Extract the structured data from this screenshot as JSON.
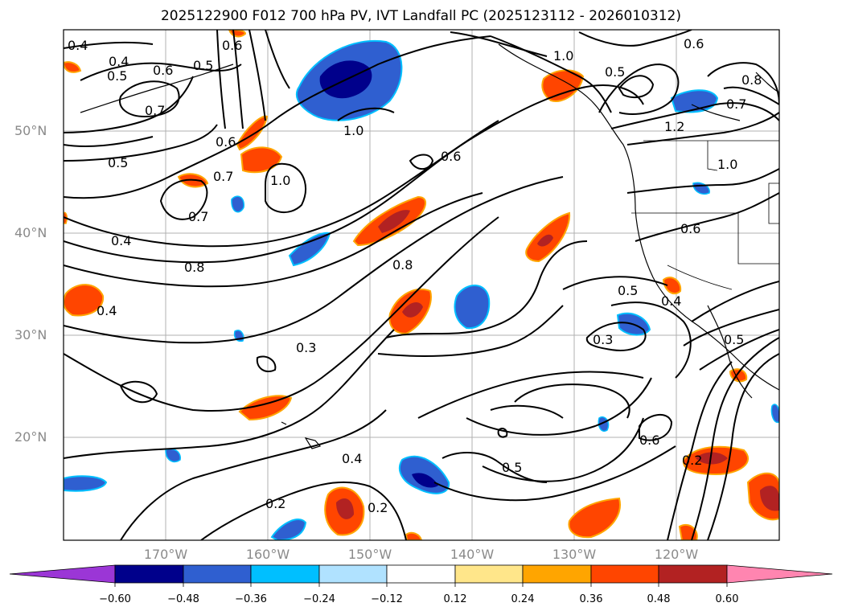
{
  "title": "2025122900 F012 700 hPa PV, IVT Landfall PC (2025123112 - 2026010312)",
  "map": {
    "lat_labels": [
      "50°N",
      "40°N",
      "30°N",
      "20°N"
    ],
    "lon_labels": [
      "170°W",
      "160°W",
      "150°W",
      "140°W",
      "130°W",
      "120°W"
    ],
    "contour_labels": [
      "0.4",
      "0.4",
      "0.5",
      "0.6",
      "0.5",
      "0.6",
      "0.7",
      "0.6",
      "0.5",
      "0.7",
      "1.0",
      "0.7",
      "1.0",
      "0.6",
      "1.0",
      "0.5",
      "0.8",
      "1.2",
      "1.0",
      "0.6",
      "0.7",
      "0.8",
      "0.4",
      "0.6",
      "0.5",
      "0.4",
      "0.3",
      "0.3",
      "0.5",
      "0.4",
      "0.6",
      "0.2",
      "0.2",
      "0.5",
      "0.2",
      "0.4"
    ],
    "colors": {
      "line": "#000000",
      "grid": "#b0b0b0",
      "label": "#8a8a8a"
    }
  },
  "colorbar": {
    "ticks": [
      "−0.60",
      "−0.48",
      "−0.36",
      "−0.24",
      "−0.12",
      "0.12",
      "0.24",
      "0.36",
      "0.48",
      "0.60"
    ],
    "colors": [
      "#9b36d6",
      "#00008b",
      "#2f5fd0",
      "#00bfff",
      "#b0e2ff",
      "#ffffff",
      "#ffe68a",
      "#ffa500",
      "#ff4500",
      "#b22222",
      "#ff85b0"
    ]
  }
}
